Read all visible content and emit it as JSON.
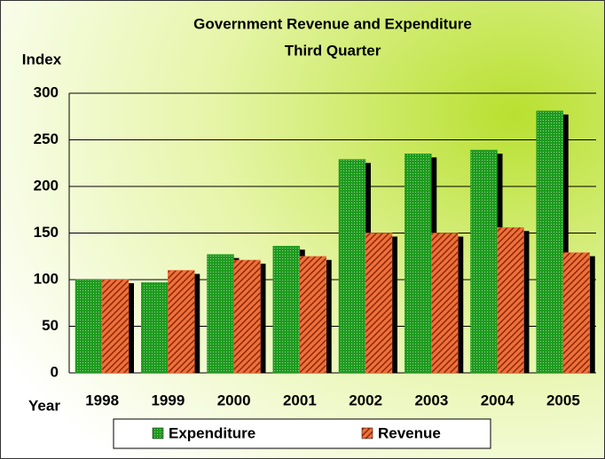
{
  "chart_data": {
    "type": "bar",
    "title": "Government Revenue and Expenditure",
    "subtitle": "Third Quarter",
    "y_label": "Index",
    "x_label": "Year",
    "categories": [
      "1998",
      "1999",
      "2000",
      "2001",
      "2002",
      "2003",
      "2004",
      "2005"
    ],
    "series": [
      {
        "name": "Expenditure",
        "color": "#1e9a1e",
        "values": [
          100,
          97,
          127,
          136,
          229,
          235,
          239,
          281
        ]
      },
      {
        "name": "Revenue",
        "color": "#f0703a",
        "values": [
          100,
          110,
          121,
          125,
          150,
          150,
          156,
          129
        ]
      }
    ],
    "ylim": [
      0,
      300
    ],
    "yticks": [
      0,
      50,
      100,
      150,
      200,
      250,
      300
    ],
    "grid": true
  }
}
